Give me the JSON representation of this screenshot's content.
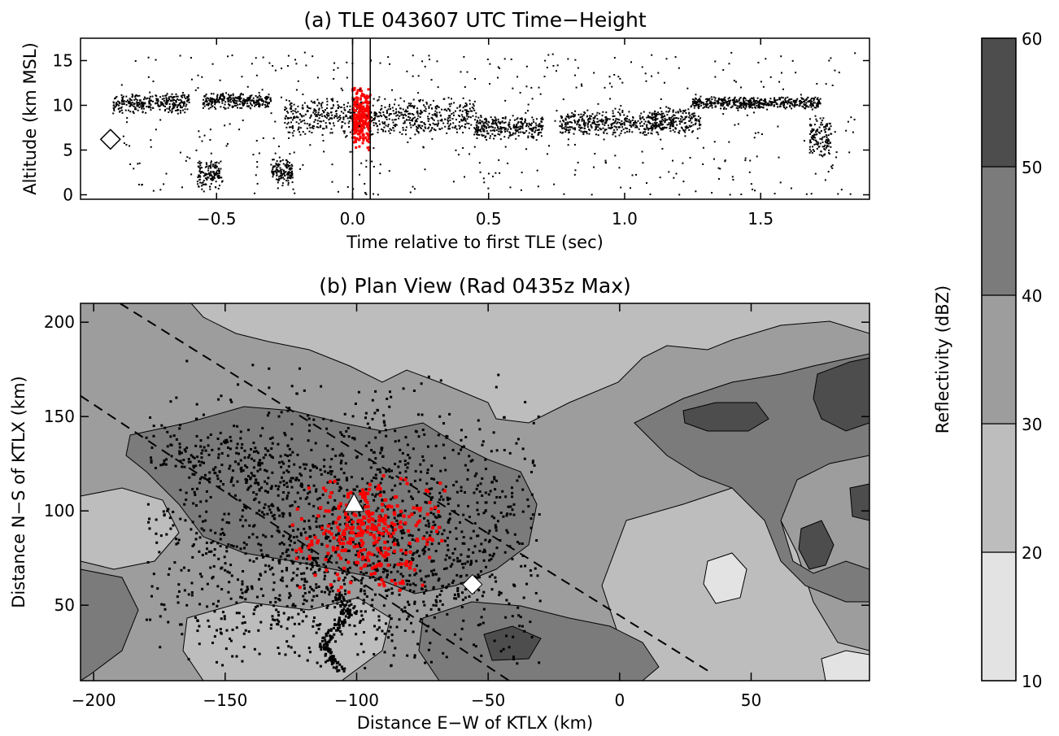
{
  "chart_data": [
    {
      "type": "scatter",
      "title": "(a) TLE 043607 UTC Time−Height",
      "xlabel": "Time relative to first TLE (sec)",
      "ylabel": "Altitude (km MSL)",
      "xlim": [
        -1.0,
        1.9
      ],
      "ylim": [
        -0.5,
        17.5
      ],
      "xticks": [
        -0.5,
        0.0,
        0.5,
        1.0,
        1.5
      ],
      "xtick_labels": [
        "−0.5",
        "0.0",
        "0.5",
        "1.0",
        "1.5"
      ],
      "yticks": [
        0,
        5,
        10,
        15
      ],
      "ytick_labels": [
        "0",
        "5",
        "10",
        "15"
      ],
      "vertical_lines_x": [
        0.0,
        0.065
      ],
      "diamond_marker": {
        "x": -0.89,
        "y": 6.2
      },
      "series": [
        {
          "color": "#000000",
          "description_points": "dense lightning source points; cluster trace",
          "clusters": [
            {
              "x0": -0.88,
              "x1": -0.6,
              "y0": 9.0,
              "y1": 11.5
            },
            {
              "x0": -0.55,
              "x1": -0.3,
              "y0": 9.5,
              "y1": 11.5
            },
            {
              "x0": -0.57,
              "x1": -0.48,
              "y0": 0.5,
              "y1": 4.0
            },
            {
              "x0": -0.3,
              "x1": -0.22,
              "y0": 1.0,
              "y1": 4.0
            },
            {
              "x0": -0.25,
              "x1": 0.45,
              "y0": 6.5,
              "y1": 11.0
            },
            {
              "x0": 0.45,
              "x1": 0.7,
              "y0": 6.0,
              "y1": 9.0
            },
            {
              "x0": 0.76,
              "x1": 1.12,
              "y0": 6.5,
              "y1": 9.5
            },
            {
              "x0": 1.1,
              "x1": 1.28,
              "y0": 6.5,
              "y1": 10.0
            },
            {
              "x0": 1.25,
              "x1": 1.72,
              "y0": 9.5,
              "y1": 11.0
            },
            {
              "x0": 1.68,
              "x1": 1.76,
              "y0": 4.0,
              "y1": 9.0
            }
          ]
        },
        {
          "color": "#ff0000",
          "clusters": [
            {
              "x0": 0.0,
              "x1": 0.065,
              "y0": 4.5,
              "y1": 12.5
            }
          ]
        }
      ]
    },
    {
      "type": "heatmap",
      "title": "(b) Plan View (Rad 0435z Max)",
      "xlabel": "Distance E−W of KTLX (km)",
      "ylabel": "Distance N−S of KTLX (km)",
      "xlim": [
        -205,
        95
      ],
      "ylim": [
        10,
        210
      ],
      "xticks": [
        -200,
        -150,
        -100,
        -50,
        0,
        50
      ],
      "xtick_labels": [
        "−200",
        "−150",
        "−100",
        "−50",
        "0",
        "50"
      ],
      "yticks": [
        50,
        100,
        150,
        200
      ],
      "ytick_labels": [
        "50",
        "100",
        "150",
        "200"
      ],
      "triangle_marker": {
        "x": -101,
        "y": 104
      },
      "diamond_marker": {
        "x": -56,
        "y": 61
      },
      "dashed_lines": [
        {
          "from": [
            -190,
            210
          ],
          "to": [
            35,
            14
          ]
        },
        {
          "from": [
            -205,
            161
          ],
          "to": [
            -42,
            10
          ]
        }
      ],
      "black_source_region": {
        "x": [
          -180,
          -30
        ],
        "y": [
          15,
          185
        ]
      },
      "red_source_region": {
        "x": [
          -125,
          -65
        ],
        "y": [
          55,
          120
        ]
      }
    },
    {
      "type": "colorbar",
      "label": "Reflectivity (dBZ)",
      "levels": [
        10,
        20,
        30,
        40,
        50,
        60
      ],
      "tick_labels": [
        "10",
        "20",
        "30",
        "40",
        "50",
        "60"
      ],
      "colors": [
        "#e3e3e3",
        "#bdbdbd",
        "#9d9d9d",
        "#7b7b7b",
        "#4d4d4d"
      ]
    }
  ]
}
